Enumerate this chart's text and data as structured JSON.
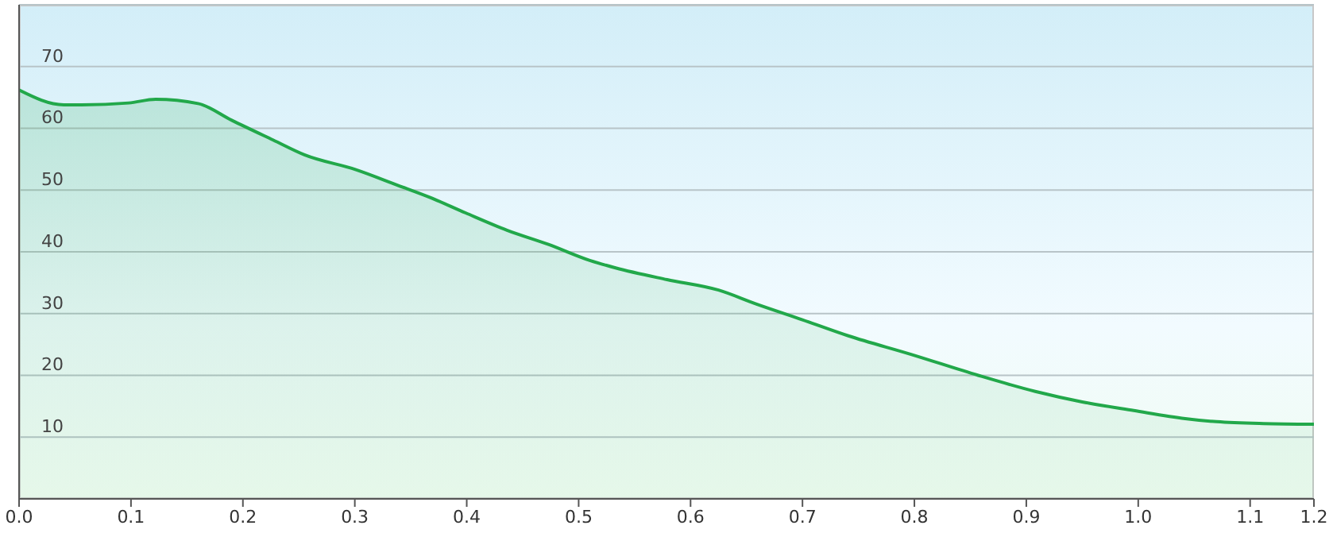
{
  "chart_data": {
    "type": "area",
    "x": [
      0,
      0.04,
      0.056,
      0.098,
      0.122,
      0.16,
      0.19,
      0.227,
      0.255,
      0.301,
      0.338,
      0.366,
      0.399,
      0.436,
      0.473,
      0.51,
      0.533,
      0.579,
      0.625,
      0.658,
      0.7,
      0.741,
      0.797,
      0.857,
      0.908,
      0.95,
      0.996,
      1.042,
      1.07,
      1.112,
      1.157
    ],
    "series": [
      {
        "color": "#22a84a",
        "values": [
          66.2,
          63.8,
          63.8,
          64.1,
          64.7,
          64.0,
          61.3,
          58.1,
          55.7,
          53.3,
          50.8,
          48.9,
          46.3,
          43.5,
          41.2,
          38.6,
          37.4,
          35.5,
          33.8,
          31.6,
          29.0,
          26.4,
          23.4,
          20.0,
          17.4,
          15.7,
          14.3,
          13.0,
          12.5,
          12.2,
          12.1
        ]
      }
    ],
    "xlim": [
      0,
      1.157
    ],
    "xticks": [
      {
        "value": 0,
        "label": "0.0"
      },
      0.1,
      0.2,
      0.3,
      0.4,
      0.5,
      0.6,
      0.7,
      0.8,
      0.9,
      {
        "value": 1,
        "label": "1.0"
      },
      1.1,
      {
        "value": 1.157,
        "label": "1.2"
      }
    ],
    "ylim": [
      0,
      80
    ],
    "yticks": [
      10,
      20,
      30,
      40,
      50,
      60,
      70
    ],
    "grid": "y"
  }
}
